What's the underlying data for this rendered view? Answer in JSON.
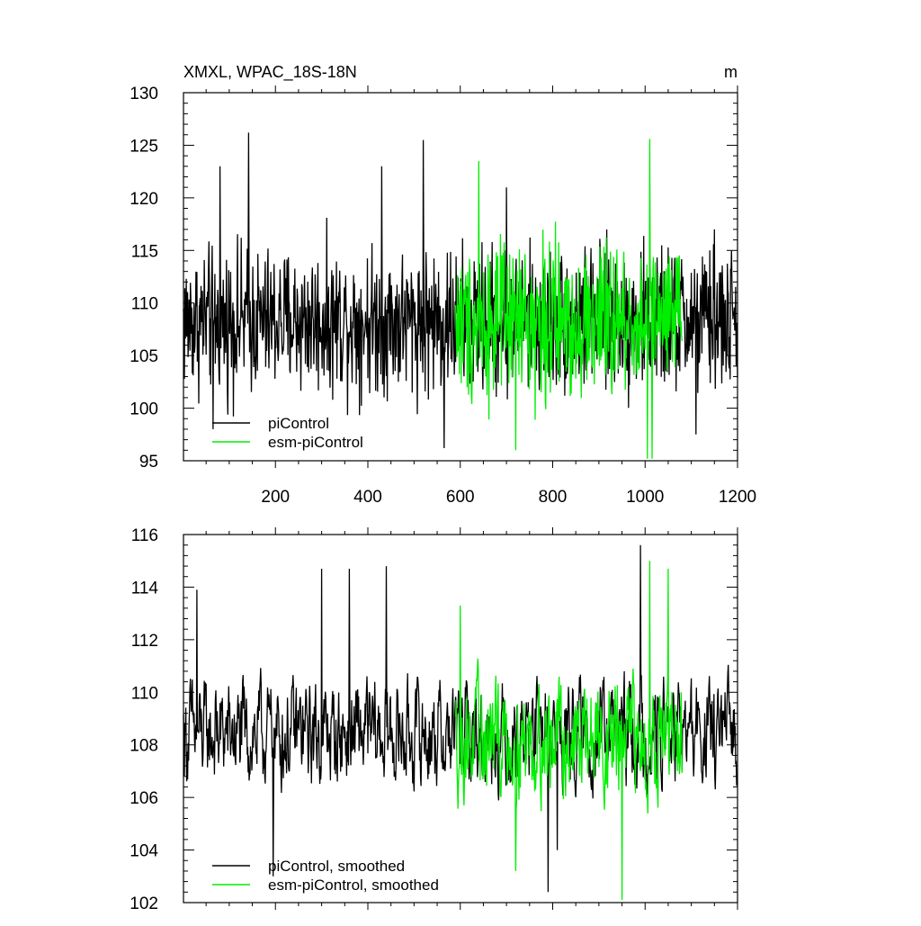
{
  "figure": {
    "title_left": "XMXL, WPAC_18S-18N",
    "title_right": "m"
  },
  "chart_data": [
    {
      "type": "line",
      "xlim": [
        1,
        1200
      ],
      "ylim": [
        95,
        130
      ],
      "xticks": [
        200,
        400,
        600,
        800,
        1000,
        1200
      ],
      "xtick_labels": [
        "200",
        "400",
        "600",
        "800",
        "1000",
        "1200"
      ],
      "yticks": [
        95,
        100,
        105,
        110,
        115,
        120,
        125,
        130
      ],
      "ytick_labels": [
        "95",
        "100",
        "105",
        "110",
        "115",
        "120",
        "125",
        "130"
      ],
      "legend": "bottom-left",
      "series": [
        {
          "name": "piControl",
          "color": "#000000",
          "x_range": [
            1,
            1200
          ],
          "mean": 108.3,
          "amplitude": 4.2,
          "peaks": [
            [
              142,
              126.2
            ],
            [
              520,
              125.5
            ],
            [
              430,
              123.0
            ],
            [
              80,
              123.0
            ],
            [
              700,
              121.0
            ],
            [
              1150,
              117.0
            ],
            [
              1110,
              97.5
            ],
            [
              565,
              96.2
            ],
            [
              65,
              98.0
            ]
          ]
        },
        {
          "name": "esm-piControl",
          "color": "#00ee00",
          "x_range": [
            590,
            1080
          ],
          "mean": 108.2,
          "amplitude": 4.5,
          "peaks": [
            [
              1010,
              125.6
            ],
            [
              640,
              123.5
            ],
            [
              720,
              96.0
            ],
            [
              1005,
              95.2
            ],
            [
              1015,
              95.2
            ]
          ]
        }
      ]
    },
    {
      "type": "line",
      "xlim": [
        1,
        1200
      ],
      "ylim": [
        102,
        116
      ],
      "xticks": [
        200,
        400,
        600,
        800,
        1000,
        1200
      ],
      "yticks": [
        102,
        104,
        106,
        108,
        110,
        112,
        114,
        116
      ],
      "ytick_labels": [
        "102",
        "104",
        "106",
        "108",
        "110",
        "112",
        "114",
        "116"
      ],
      "legend": "bottom-left",
      "series": [
        {
          "name": "piControl, smoothed",
          "color": "#000000",
          "x_range": [
            1,
            1200
          ],
          "mean": 108.4,
          "amplitude": 2.2,
          "peaks": [
            [
              990,
              115.6
            ],
            [
              360,
              114.7
            ],
            [
              300,
              114.7
            ],
            [
              440,
              114.8
            ],
            [
              30,
              113.9
            ],
            [
              195,
              103.0
            ],
            [
              790,
              102.4
            ],
            [
              810,
              104.0
            ]
          ]
        },
        {
          "name": "esm-piControl, smoothed",
          "color": "#00ee00",
          "x_range": [
            590,
            1080
          ],
          "mean": 108.2,
          "amplitude": 2.4,
          "peaks": [
            [
              1050,
              114.7
            ],
            [
              600,
              113.3
            ],
            [
              950,
              102.1
            ],
            [
              1010,
              115.0
            ],
            [
              720,
              103.2
            ]
          ]
        }
      ]
    }
  ]
}
